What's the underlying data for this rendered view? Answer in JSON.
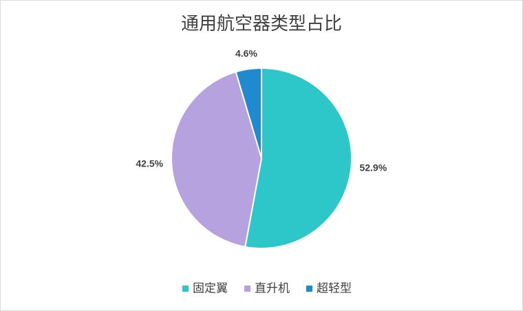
{
  "chart_data": {
    "type": "pie",
    "title": "通用航空器类型占比",
    "categories": [
      "固定翼",
      "直升机",
      "超轻型"
    ],
    "values": [
      52.9,
      42.5,
      4.6
    ],
    "value_labels": [
      "52.9%",
      "42.5%",
      "4.6%"
    ],
    "colors": [
      "#2ec7c9",
      "#b6a2de",
      "#1f8ad0"
    ],
    "legend": "bottom"
  }
}
